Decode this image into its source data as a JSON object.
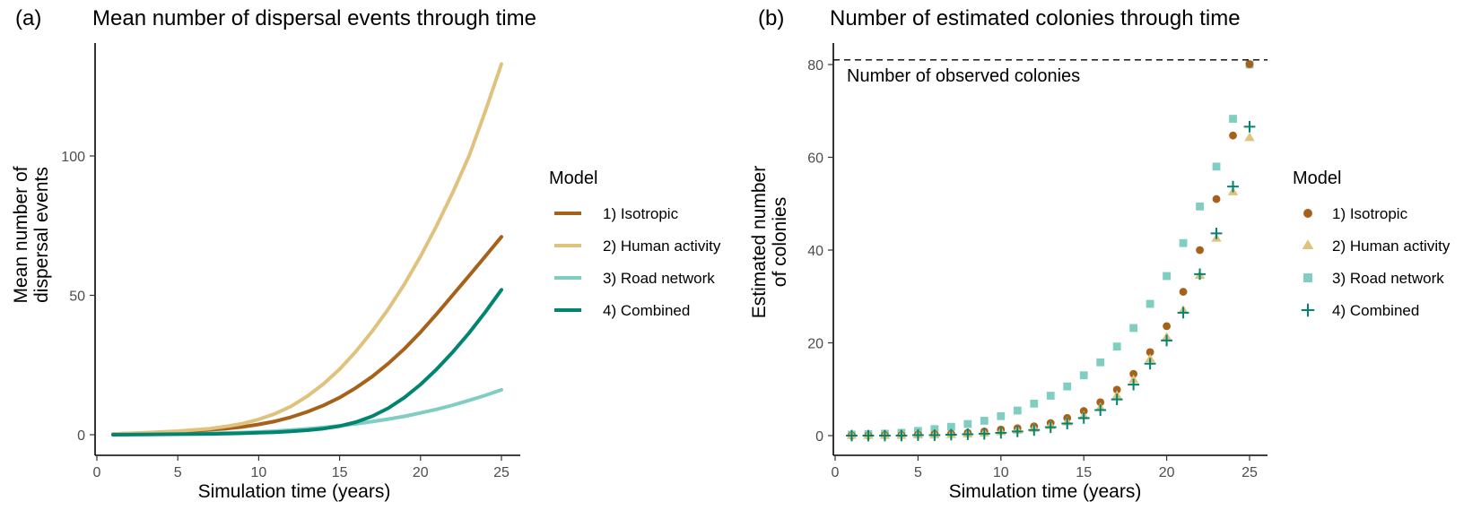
{
  "colors": {
    "isotropic": "#A6611A",
    "human": "#DFC27D",
    "road": "#80CDC1",
    "combined": "#018571"
  },
  "panels": {
    "a": {
      "letter": "(a)",
      "title": "Mean number of dispersal events through time",
      "xlabel": "Simulation time (years)",
      "ylabel_line1": "Mean number of",
      "ylabel_line2": "dispersal events",
      "legend_title": "Model",
      "legend": [
        "1) Isotropic",
        "2) Human activity",
        "3) Road network",
        "4) Combined"
      ]
    },
    "b": {
      "letter": "(b)",
      "title": "Number of estimated colonies through time",
      "xlabel": "Simulation time (years)",
      "ylabel_line1": "Estimated number",
      "ylabel_line2": "of colonies",
      "legend_title": "Model",
      "legend": [
        "1) Isotropic",
        "2) Human activity",
        "3) Road network",
        "4) Combined"
      ],
      "annotation": "Number of observed colonies"
    }
  },
  "chart_data": [
    {
      "type": "line",
      "title": "Mean number of dispersal events through time",
      "xlabel": "Simulation time (years)",
      "ylabel": "Mean number of dispersal events",
      "xlim": [
        0,
        25
      ],
      "ylim": [
        -5,
        140
      ],
      "xticks": [
        0,
        5,
        10,
        15,
        20,
        25
      ],
      "yticks": [
        0,
        50,
        100
      ],
      "grid": false,
      "legend_title": "Model",
      "legend_position": "right",
      "x": [
        1,
        3,
        5,
        7,
        8,
        9,
        10,
        11,
        12,
        13,
        14,
        15,
        16,
        17,
        18,
        19,
        20,
        21,
        22,
        23,
        24,
        25
      ],
      "series": [
        {
          "name": "1) Isotropic",
          "color_key": "isotropic",
          "values": [
            0.3,
            0.6,
            1.0,
            1.8,
            2.2,
            2.8,
            3.7,
            4.8,
            6.3,
            8.2,
            10.5,
            13.3,
            16.8,
            20.8,
            25.5,
            30.8,
            36.8,
            43.3,
            50.2,
            57.0,
            64.0,
            71.0
          ]
        },
        {
          "name": "2) Human activity",
          "color_key": "human",
          "values": [
            0.3,
            0.7,
            1.3,
            2.2,
            3.0,
            4.0,
            5.5,
            7.5,
            10.2,
            13.8,
            18.2,
            23.5,
            29.8,
            37.0,
            45.0,
            54.0,
            64.0,
            75.0,
            87.0,
            100.0,
            116.0,
            133.0
          ]
        },
        {
          "name": "3) Road network",
          "color_key": "road",
          "values": [
            0.1,
            0.2,
            0.3,
            0.5,
            0.6,
            0.8,
            1.0,
            1.3,
            1.7,
            2.1,
            2.6,
            3.2,
            3.9,
            4.7,
            5.6,
            6.6,
            7.8,
            9.1,
            10.6,
            12.3,
            14.1,
            16.1
          ]
        },
        {
          "name": "4) Combined",
          "color_key": "combined",
          "values": [
            0.0,
            0.1,
            0.2,
            0.3,
            0.4,
            0.5,
            0.7,
            0.9,
            1.2,
            1.6,
            2.2,
            3.1,
            4.5,
            6.6,
            9.5,
            13.3,
            18.0,
            23.5,
            29.7,
            36.5,
            44.0,
            52.0
          ]
        }
      ]
    },
    {
      "type": "scatter",
      "title": "Number of estimated colonies through time",
      "xlabel": "Simulation time (years)",
      "ylabel": "Estimated number of colonies",
      "xlim": [
        0,
        25
      ],
      "ylim": [
        -4,
        84
      ],
      "xticks": [
        0,
        5,
        10,
        15,
        20,
        25
      ],
      "yticks": [
        0,
        20,
        40,
        60,
        80
      ],
      "grid": false,
      "legend_title": "Model",
      "legend_position": "right",
      "hline": {
        "y": 81,
        "style": "dashed",
        "label": "Number of observed colonies"
      },
      "x": [
        1,
        2,
        3,
        4,
        5,
        6,
        7,
        8,
        9,
        10,
        11,
        12,
        13,
        14,
        15,
        16,
        17,
        18,
        19,
        20,
        21,
        22,
        23,
        24,
        25
      ],
      "series": [
        {
          "name": "1) Isotropic",
          "marker": "circle",
          "color_key": "isotropic",
          "values": [
            0.0,
            0.0,
            0.1,
            0.1,
            0.2,
            0.3,
            0.4,
            0.6,
            0.9,
            1.3,
            1.6,
            2.0,
            2.7,
            3.8,
            5.3,
            7.2,
            9.9,
            13.3,
            18.0,
            23.6,
            31.0,
            40.0,
            51.0,
            64.7,
            80.1
          ]
        },
        {
          "name": "2) Human activity",
          "marker": "triangle",
          "color_key": "human",
          "values": [
            0.0,
            0.0,
            0.0,
            0.0,
            0.1,
            0.1,
            0.2,
            0.3,
            0.5,
            0.8,
            1.1,
            1.5,
            2.1,
            2.9,
            4.2,
            6.0,
            8.6,
            12.0,
            16.5,
            21.2,
            27.0,
            34.5,
            42.5,
            52.5,
            64.2
          ]
        },
        {
          "name": "3) Road network",
          "marker": "square",
          "color_key": "road",
          "values": [
            0.2,
            0.3,
            0.4,
            0.6,
            1.0,
            1.4,
            1.9,
            2.5,
            3.2,
            4.2,
            5.4,
            6.9,
            8.6,
            10.6,
            13.0,
            15.8,
            19.2,
            23.2,
            28.4,
            34.4,
            41.5,
            49.4,
            58.0,
            68.3,
            80.0
          ]
        },
        {
          "name": "4) Combined",
          "marker": "plus",
          "color_key": "combined",
          "values": [
            0.0,
            0.0,
            0.0,
            0.0,
            0.1,
            0.1,
            0.2,
            0.3,
            0.4,
            0.6,
            0.9,
            1.2,
            1.8,
            2.6,
            3.8,
            5.5,
            7.8,
            11.0,
            15.5,
            20.5,
            26.5,
            34.8,
            43.6,
            53.7,
            66.6
          ]
        }
      ]
    }
  ]
}
